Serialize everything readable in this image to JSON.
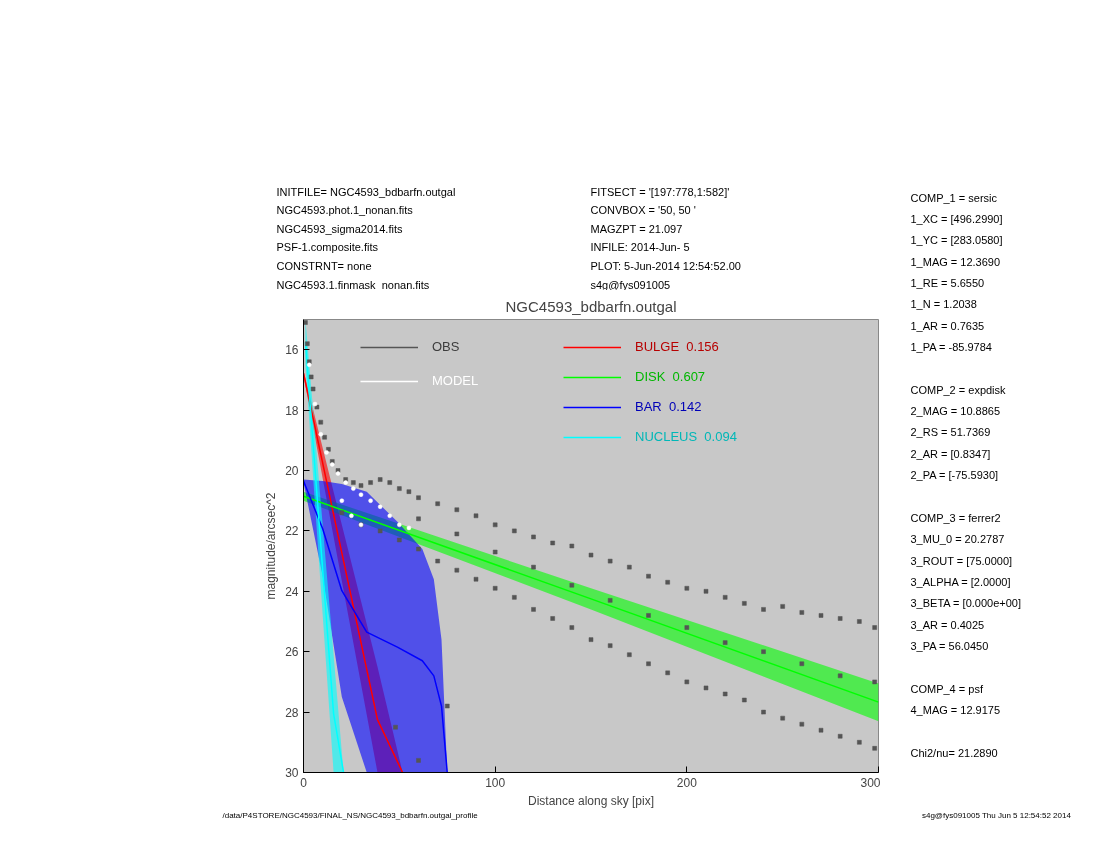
{
  "chart_data": {
    "type": "scatter",
    "title": "NGC4593_bdbarfn.outgal",
    "xlabel": "Distance along sky [pix]",
    "ylabel": "magnitude/arcsec^2",
    "xlim": [
      0,
      300
    ],
    "ylim": [
      30,
      15
    ],
    "xticks": [
      0,
      100,
      200,
      300
    ],
    "yticks": [
      16,
      18,
      20,
      22,
      24,
      26,
      28,
      30
    ],
    "grid": false,
    "legend": "top",
    "series": [
      {
        "name": "OBS",
        "marker": "square",
        "color": "#555555",
        "x": [
          1,
          2,
          3,
          4,
          5,
          7,
          9,
          11,
          13,
          15,
          18,
          22,
          26,
          30,
          35,
          40,
          45,
          50,
          55,
          60,
          70,
          80,
          90,
          100,
          110,
          120,
          130,
          140,
          150,
          160,
          170,
          180,
          190,
          200,
          210,
          220,
          230,
          240,
          250,
          260,
          270,
          280,
          290,
          298,
          20,
          30,
          40,
          50,
          60,
          70,
          80,
          90,
          100,
          110,
          120,
          130,
          140,
          150,
          160,
          170,
          180,
          190,
          200,
          210,
          220,
          230,
          240,
          250,
          260,
          270,
          280,
          290,
          298,
          60,
          80,
          100,
          120,
          140,
          160,
          180,
          200,
          220,
          240,
          260,
          280,
          298,
          48,
          60,
          75
        ],
        "values": [
          15.1,
          15.8,
          16.4,
          16.9,
          17.3,
          17.9,
          18.4,
          18.9,
          19.3,
          19.7,
          20.0,
          20.3,
          20.4,
          20.5,
          20.4,
          20.3,
          20.4,
          20.6,
          20.7,
          20.9,
          21.1,
          21.3,
          21.5,
          21.8,
          22.0,
          22.2,
          22.4,
          22.5,
          22.8,
          23.0,
          23.2,
          23.5,
          23.7,
          23.9,
          24.0,
          24.2,
          24.4,
          24.6,
          24.5,
          24.7,
          24.8,
          24.9,
          25.0,
          25.2,
          21.4,
          21.8,
          22.0,
          22.3,
          22.6,
          23.0,
          23.3,
          23.6,
          23.9,
          24.2,
          24.6,
          24.9,
          25.2,
          25.6,
          25.8,
          26.1,
          26.4,
          26.7,
          27.0,
          27.2,
          27.4,
          27.6,
          28.0,
          28.2,
          28.4,
          28.6,
          28.8,
          29.0,
          29.2,
          21.6,
          22.1,
          22.7,
          23.2,
          23.8,
          24.3,
          24.8,
          25.2,
          25.7,
          26.0,
          26.4,
          26.8,
          27.0,
          28.5,
          29.6,
          27.8
        ]
      },
      {
        "name": "MODEL",
        "marker": "circle",
        "color": "#ffffff",
        "x": [
          3,
          6,
          9,
          12,
          15,
          18,
          20,
          22,
          25,
          26,
          30,
          30,
          35,
          40,
          45,
          50,
          55
        ],
        "values": [
          16.5,
          17.8,
          18.8,
          19.4,
          19.8,
          20.1,
          21.0,
          20.4,
          21.5,
          20.6,
          20.8,
          21.8,
          21.0,
          21.2,
          21.5,
          21.8,
          21.9
        ]
      },
      {
        "name": "BULGE  0.156",
        "type": "line",
        "color": "#ff0000",
        "x": [
          0,
          20,
          38.6,
          51.7
        ],
        "values": [
          16.78,
          22.73,
          28.25,
          30
        ],
        "lower": [
          16.7,
          21.8,
          26.5,
          30
        ],
        "upper": [
          16.86,
          23.66,
          30,
          30
        ]
      },
      {
        "name": "DISK  0.607",
        "type": "line",
        "color": "#00ff00",
        "x": [
          0,
          150,
          300
        ],
        "values": [
          20.85,
          24.25,
          27.67
        ],
        "lower": [
          20.7,
          23.9,
          27.05
        ],
        "upper": [
          21.0,
          24.6,
          28.3
        ]
      },
      {
        "name": "BAR  0.142",
        "type": "line",
        "color": "#0000ff",
        "x": [
          0,
          10,
          20,
          33,
          49,
          62,
          68,
          72,
          75
        ],
        "values": [
          20.35,
          21.93,
          23.98,
          25.35,
          25.85,
          26.3,
          26.8,
          27.8,
          30
        ],
        "lower": [
          20.3,
          20.35,
          20.45,
          20.7,
          21.7,
          22.6,
          23.6,
          25.6,
          30
        ],
        "upper": [
          20.4,
          23.5,
          27.5,
          30,
          30,
          30,
          30,
          30,
          30
        ]
      },
      {
        "name": "NUCLEUS  0.094",
        "type": "line",
        "color": "#00ffff",
        "x": [
          1,
          3.7,
          6.3,
          15.7,
          20.9
        ],
        "values": [
          15.75,
          18.0,
          20.2,
          28.05,
          30
        ],
        "lower": [
          15.0,
          17.0,
          19.0,
          26.1,
          30
        ],
        "upper": [
          16.5,
          19.0,
          21.4,
          30,
          30
        ]
      }
    ],
    "annotations": [
      "INITFILE= NGC4593_bdbarfn.outgal\nNGC4593.phot.1_nonan.fits\nNGC4593_sigma2014.fits\nPSF-1.composite.fits\nCONSTRNT= none\nNGC4593.1.finmask_nonan.fits",
      "FITSECT = '[197:778,1:582]'\nCONVBOX = '50, 50  '\nMAGZPT  =              21.097\nINFILE: 2014-Jun- 5\nPLOT:  5-Jun-2014 12:54:52.00\ns4g@fys091005",
      "COMP_1  = sersic\n1_XC    = [496.2990]\n1_YC    = [283.0580]\n1_MAG   = 12.3690\n1_RE    = 5.6550\n1_N     = 1.2038\n1_AR    = 0.7635\n1_PA    = -85.9784\n\nCOMP_2  = expdisk\n2_MAG   = 10.8865\n2_RS    = 51.7369\n2_AR    = [0.8347]\n2_PA    = [-75.5930]\n\nCOMP_3  = ferrer2\n3_MU_0  = 20.2787\n3_ROUT  = [75.0000]\n3_ALPHA = [2.0000]\n3_BETA  = [0.000e+00]\n3_AR    = 0.4025\n3_PA    = 56.0450\n\nCOMP_4  = psf\n4_MAG   = 12.9175\n\nChi2/nu=      21.2890",
      "/data/P4STORE/NGC4593/FINAL_NS/NGC4593_bdbarfn.outgal_profile",
      "s4g@fys091005  Thu Jun  5 12:54:52 2014"
    ]
  }
}
